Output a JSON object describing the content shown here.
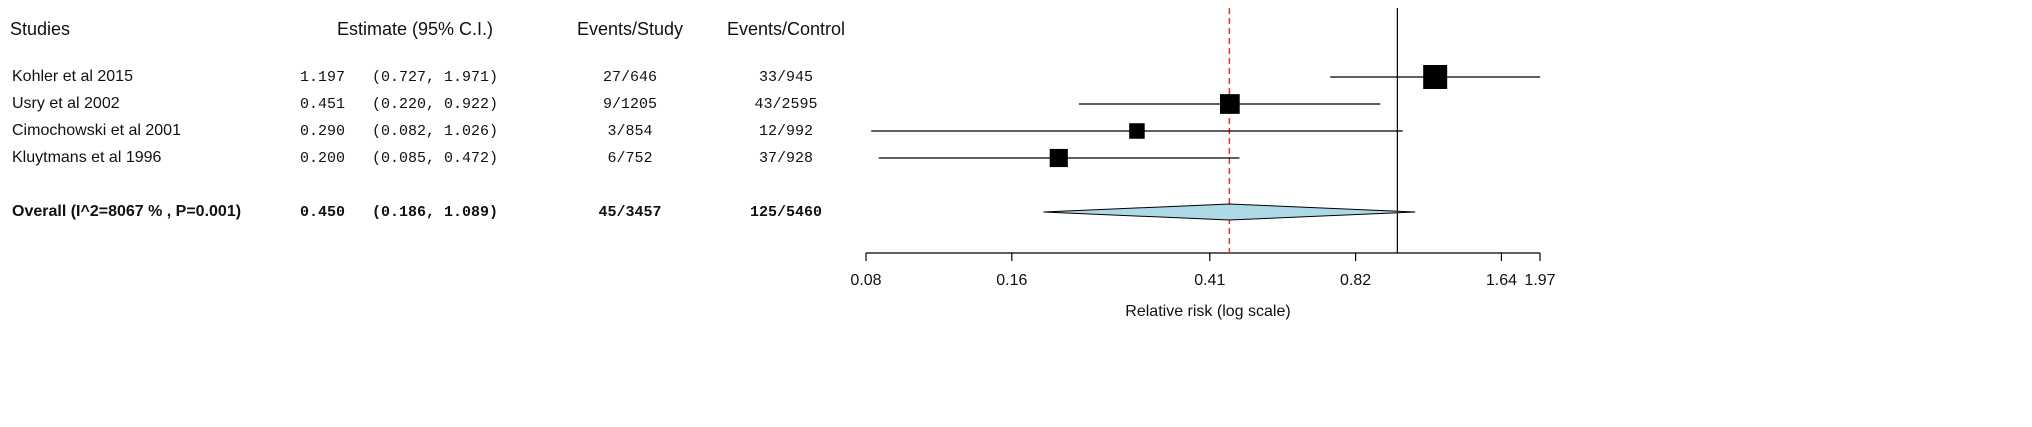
{
  "chart_data": {
    "type": "forest",
    "headers": {
      "studies": "Studies",
      "estimate": "Estimate (95% C.I.)",
      "events_study": "Events/Study",
      "events_control": "Events/Control"
    },
    "categories": [
      "Kohler et al 2015",
      "Usry et al 2002",
      "Cimochowski et al 2001",
      "Kluytmans et al 1996"
    ],
    "values": [
      1.197,
      0.451,
      0.29,
      0.2
    ],
    "value_labels": [
      "1.197",
      "0.451",
      "0.290",
      "0.200"
    ],
    "ci_low": [
      0.727,
      0.22,
      0.082,
      0.085
    ],
    "ci_high": [
      1.971,
      0.922,
      1.026,
      0.472
    ],
    "ci_labels": [
      "(0.727, 1.971)",
      "(0.220, 0.922)",
      "(0.082, 1.026)",
      "(0.085, 0.472)"
    ],
    "events_study": [
      "27/646",
      "9/1205",
      "3/854",
      "6/752"
    ],
    "events_control": [
      "33/945",
      "43/2595",
      "12/992",
      "37/928"
    ],
    "overall": {
      "label": "Overall (I^2=8067 % , P=0.001)",
      "value": 0.45,
      "value_label": "0.450",
      "ci_low": 0.186,
      "ci_high": 1.089,
      "ci_label": "(0.186, 1.089)",
      "events_study": "45/3457",
      "events_control": "125/5460"
    },
    "xlabel": "Relative risk (log scale)",
    "log_scale": true,
    "xlim": [
      0.08,
      1.97
    ],
    "xticks": [
      0.08,
      0.16,
      0.41,
      0.82,
      1.64,
      1.97
    ],
    "reference_line": 1,
    "box_color": "#000000",
    "diamond_color": "#add8e6",
    "overall_line_color": "#e0332b"
  }
}
